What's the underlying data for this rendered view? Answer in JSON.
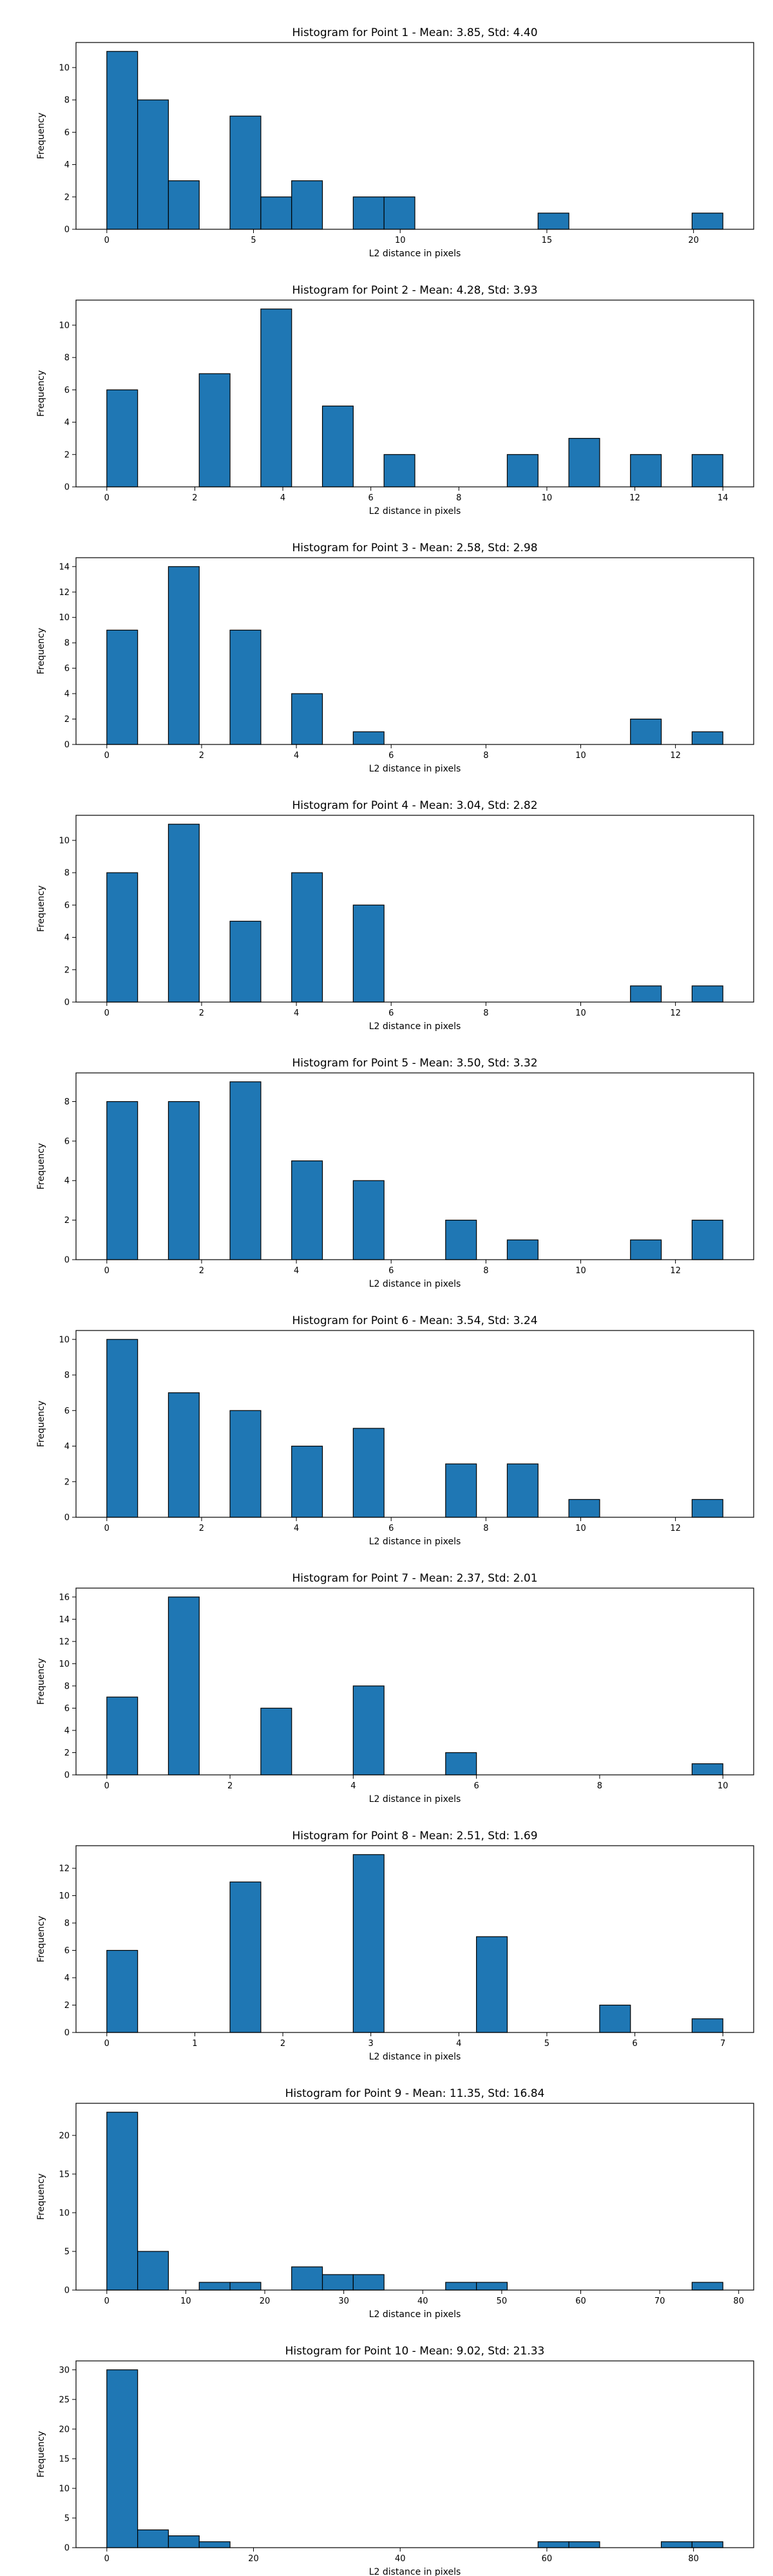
{
  "figure": {
    "bar_color": "#1f77b4",
    "edge_color": "#000000",
    "xlabel": "L2 distance in pixels",
    "ylabel": "Frequency"
  },
  "chart_data": [
    {
      "type": "bar",
      "title": "Histogram for Point 1 - Mean: 3.85, Std: 4.40",
      "xlabel": "L2 distance in pixels",
      "ylabel": "Frequency",
      "bin_edges": [
        0,
        1.05,
        2.1,
        3.15,
        4.2,
        5.25,
        6.3,
        7.35,
        8.4,
        9.45,
        10.5,
        11.55,
        12.6,
        13.65,
        14.7,
        15.75,
        16.8,
        17.85,
        18.9,
        19.95,
        21
      ],
      "values": [
        11,
        8,
        3,
        0,
        7,
        2,
        3,
        0,
        2,
        2,
        0,
        0,
        0,
        0,
        1,
        0,
        0,
        0,
        0,
        1
      ],
      "xlim": [
        -1.05,
        22.05
      ],
      "ylim": [
        0,
        11.55
      ],
      "xticks": [
        0,
        5,
        10,
        15,
        20
      ],
      "yticks": [
        0,
        2,
        4,
        6,
        8,
        10
      ],
      "grid": false
    },
    {
      "type": "bar",
      "title": "Histogram for Point 2 - Mean: 4.28, Std: 3.93",
      "xlabel": "L2 distance in pixels",
      "ylabel": "Frequency",
      "bin_edges": [
        0,
        0.7,
        1.4,
        2.1,
        2.8,
        3.5,
        4.2,
        4.9,
        5.6,
        6.3,
        7,
        7.7,
        8.4,
        9.1,
        9.8,
        10.5,
        11.2,
        11.9,
        12.6,
        13.3,
        14
      ],
      "values": [
        6,
        0,
        0,
        7,
        0,
        11,
        0,
        5,
        0,
        2,
        0,
        0,
        0,
        2,
        0,
        3,
        0,
        2,
        0,
        2
      ],
      "xlim": [
        -0.7,
        14.7
      ],
      "ylim": [
        0,
        11.55
      ],
      "xticks": [
        0,
        2,
        4,
        6,
        8,
        10,
        12,
        14
      ],
      "yticks": [
        0,
        2,
        4,
        6,
        8,
        10
      ],
      "grid": false
    },
    {
      "type": "bar",
      "title": "Histogram for Point 3 - Mean: 2.58, Std: 2.98",
      "xlabel": "L2 distance in pixels",
      "ylabel": "Frequency",
      "bin_edges": [
        0,
        0.65,
        1.3,
        1.95,
        2.6,
        3.25,
        3.9,
        4.55,
        5.2,
        5.85,
        6.5,
        7.15,
        7.8,
        8.45,
        9.1,
        9.75,
        10.4,
        11.05,
        11.7,
        12.35,
        13
      ],
      "values": [
        9,
        0,
        14,
        0,
        9,
        0,
        4,
        0,
        1,
        0,
        0,
        0,
        0,
        0,
        0,
        0,
        0,
        2,
        0,
        1
      ],
      "xlim": [
        -0.65,
        13.65
      ],
      "ylim": [
        0,
        14.7
      ],
      "xticks": [
        0,
        2,
        4,
        6,
        8,
        10,
        12
      ],
      "yticks": [
        0,
        2,
        4,
        6,
        8,
        10,
        12,
        14
      ],
      "grid": false
    },
    {
      "type": "bar",
      "title": "Histogram for Point 4 - Mean: 3.04, Std: 2.82",
      "xlabel": "L2 distance in pixels",
      "ylabel": "Frequency",
      "bin_edges": [
        0,
        0.65,
        1.3,
        1.95,
        2.6,
        3.25,
        3.9,
        4.55,
        5.2,
        5.85,
        6.5,
        7.15,
        7.8,
        8.45,
        9.1,
        9.75,
        10.4,
        11.05,
        11.7,
        12.35,
        13
      ],
      "values": [
        8,
        0,
        11,
        0,
        5,
        0,
        8,
        0,
        6,
        0,
        0,
        0,
        0,
        0,
        0,
        0,
        0,
        1,
        0,
        1
      ],
      "xlim": [
        -0.65,
        13.65
      ],
      "ylim": [
        0,
        11.55
      ],
      "xticks": [
        0,
        2,
        4,
        6,
        8,
        10,
        12
      ],
      "yticks": [
        0,
        2,
        4,
        6,
        8,
        10
      ],
      "grid": false
    },
    {
      "type": "bar",
      "title": "Histogram for Point 5 - Mean: 3.50, Std: 3.32",
      "xlabel": "L2 distance in pixels",
      "ylabel": "Frequency",
      "bin_edges": [
        0,
        0.65,
        1.3,
        1.95,
        2.6,
        3.25,
        3.9,
        4.55,
        5.2,
        5.85,
        6.5,
        7.15,
        7.8,
        8.45,
        9.1,
        9.75,
        10.4,
        11.05,
        11.7,
        12.35,
        13
      ],
      "values": [
        8,
        0,
        8,
        0,
        9,
        0,
        5,
        0,
        4,
        0,
        0,
        2,
        0,
        1,
        0,
        0,
        0,
        1,
        0,
        2
      ],
      "xlim": [
        -0.65,
        13.65
      ],
      "ylim": [
        0,
        9.45
      ],
      "xticks": [
        0,
        2,
        4,
        6,
        8,
        10,
        12
      ],
      "yticks": [
        0,
        2,
        4,
        6,
        8
      ],
      "grid": false
    },
    {
      "type": "bar",
      "title": "Histogram for Point 6 - Mean: 3.54, Std: 3.24",
      "xlabel": "L2 distance in pixels",
      "ylabel": "Frequency",
      "bin_edges": [
        0,
        0.65,
        1.3,
        1.95,
        2.6,
        3.25,
        3.9,
        4.55,
        5.2,
        5.85,
        6.5,
        7.15,
        7.8,
        8.45,
        9.1,
        9.75,
        10.4,
        11.05,
        11.7,
        12.35,
        13
      ],
      "values": [
        10,
        0,
        7,
        0,
        6,
        0,
        4,
        0,
        5,
        0,
        0,
        3,
        0,
        3,
        0,
        1,
        0,
        0,
        0,
        1
      ],
      "xlim": [
        -0.65,
        13.65
      ],
      "ylim": [
        0,
        10.5
      ],
      "xticks": [
        0,
        2,
        4,
        6,
        8,
        10,
        12
      ],
      "yticks": [
        0,
        2,
        4,
        6,
        8,
        10
      ],
      "grid": false
    },
    {
      "type": "bar",
      "title": "Histogram for Point 7 - Mean: 2.37, Std: 2.01",
      "xlabel": "L2 distance in pixels",
      "ylabel": "Frequency",
      "bin_edges": [
        0,
        0.5,
        1,
        1.5,
        2,
        2.5,
        3,
        3.5,
        4,
        4.5,
        5,
        5.5,
        6,
        6.5,
        7,
        7.5,
        8,
        8.5,
        9,
        9.5,
        10
      ],
      "values": [
        7,
        0,
        16,
        0,
        0,
        6,
        0,
        0,
        8,
        0,
        0,
        2,
        0,
        0,
        0,
        0,
        0,
        0,
        0,
        1
      ],
      "xlim": [
        -0.5,
        10.5
      ],
      "ylim": [
        0,
        16.8
      ],
      "xticks": [
        0,
        2,
        4,
        6,
        8,
        10
      ],
      "yticks": [
        0,
        2,
        4,
        6,
        8,
        10,
        12,
        14,
        16
      ],
      "grid": false
    },
    {
      "type": "bar",
      "title": "Histogram for Point 8 - Mean: 2.51, Std: 1.69",
      "xlabel": "L2 distance in pixels",
      "ylabel": "Frequency",
      "bin_edges": [
        0,
        0.35,
        0.7,
        1.05,
        1.4,
        1.75,
        2.1,
        2.45,
        2.8,
        3.15,
        3.5,
        3.85,
        4.2,
        4.55,
        4.9,
        5.25,
        5.6,
        5.95,
        6.3,
        6.65,
        7
      ],
      "values": [
        6,
        0,
        0,
        0,
        11,
        0,
        0,
        0,
        13,
        0,
        0,
        0,
        7,
        0,
        0,
        0,
        2,
        0,
        0,
        1
      ],
      "xlim": [
        -0.35,
        7.35
      ],
      "ylim": [
        0,
        13.65
      ],
      "xticks": [
        0,
        1,
        2,
        3,
        4,
        5,
        6,
        7
      ],
      "yticks": [
        0,
        2,
        4,
        6,
        8,
        10,
        12
      ],
      "grid": false
    },
    {
      "type": "bar",
      "title": "Histogram for Point 9 - Mean: 11.35, Std: 16.84",
      "xlabel": "L2 distance in pixels",
      "ylabel": "Frequency",
      "bin_edges": [
        0,
        3.9,
        7.8,
        11.7,
        15.6,
        19.5,
        23.4,
        27.3,
        31.2,
        35.1,
        39,
        42.9,
        46.8,
        50.7,
        54.6,
        58.5,
        62.4,
        66.3,
        70.2,
        74.1,
        78
      ],
      "values": [
        23,
        5,
        0,
        1,
        1,
        0,
        3,
        2,
        2,
        0,
        0,
        1,
        1,
        0,
        0,
        0,
        0,
        0,
        0,
        1
      ],
      "xlim": [
        -3.9,
        81.9
      ],
      "ylim": [
        0,
        24.15
      ],
      "xticks": [
        0,
        10,
        20,
        30,
        40,
        50,
        60,
        70,
        80
      ],
      "yticks": [
        0,
        5,
        10,
        15,
        20
      ],
      "grid": false
    },
    {
      "type": "bar",
      "title": "Histogram for Point 10 - Mean: 9.02, Std: 21.33",
      "xlabel": "L2 distance in pixels",
      "ylabel": "Frequency",
      "bin_edges": [
        0,
        4.2,
        8.4,
        12.6,
        16.8,
        21,
        25.2,
        29.4,
        33.6,
        37.8,
        42,
        46.2,
        50.4,
        54.6,
        58.8,
        63,
        67.2,
        71.4,
        75.6,
        79.8,
        84
      ],
      "values": [
        30,
        3,
        2,
        1,
        0,
        0,
        0,
        0,
        0,
        0,
        0,
        0,
        0,
        0,
        1,
        1,
        0,
        0,
        1,
        1
      ],
      "xlim": [
        -4.2,
        88.2
      ],
      "ylim": [
        0,
        31.5
      ],
      "xticks": [
        0,
        20,
        40,
        60,
        80
      ],
      "yticks": [
        0,
        5,
        10,
        15,
        20,
        25,
        30
      ],
      "grid": false
    }
  ]
}
